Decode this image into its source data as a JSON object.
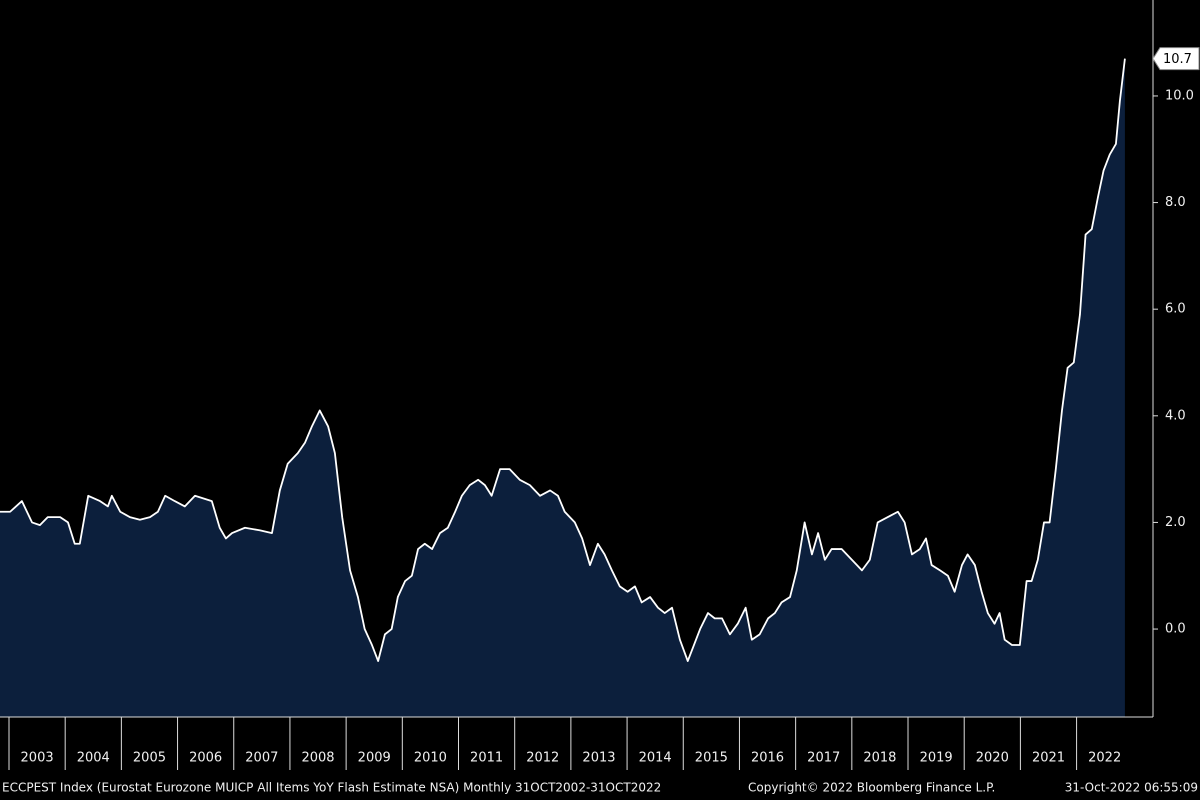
{
  "chart_data": {
    "type": "area",
    "source_note": "ECCPEST Index (Eurostat Eurozone MUICP All Items YoY Flash Estimate NSA)  Monthly 31OCT2002-31OCT2022",
    "copyright": "Copyright© 2022 Bloomberg Finance L.P.",
    "timestamp": "31-Oct-2022 06:55:09",
    "line_color": "#ffffff",
    "fill_color": "#0c1f3c",
    "xlim": [
      2002.84,
      2023.36
    ],
    "ylim": [
      -1.65,
      11.8
    ],
    "xticks": [
      2003,
      2004,
      2005,
      2006,
      2007,
      2008,
      2009,
      2010,
      2011,
      2012,
      2013,
      2014,
      2015,
      2016,
      2017,
      2018,
      2019,
      2020,
      2021,
      2022
    ],
    "yticks": [
      {
        "value": 0,
        "label": "0.0"
      },
      {
        "value": 2,
        "label": "2.0"
      },
      {
        "value": 4,
        "label": "4.0"
      },
      {
        "value": 6,
        "label": "6.0"
      },
      {
        "value": 8,
        "label": "8.0"
      },
      {
        "value": 10,
        "label": "10.0"
      }
    ],
    "x": [
      2002.84,
      2003.02,
      2003.23,
      2003.41,
      2003.55,
      2003.69,
      2003.91,
      2004.05,
      2004.17,
      2004.26,
      2004.41,
      2004.62,
      2004.76,
      2004.83,
      2004.98,
      2005.15,
      2005.33,
      2005.51,
      2005.65,
      2005.78,
      2005.95,
      2006.13,
      2006.31,
      2006.61,
      2006.75,
      2006.86,
      2006.97,
      2007.2,
      2007.47,
      2007.68,
      2007.82,
      2007.96,
      2008.14,
      2008.27,
      2008.39,
      2008.53,
      2008.68,
      2008.8,
      2008.93,
      2009.07,
      2009.21,
      2009.33,
      2009.46,
      2009.57,
      2009.69,
      2009.81,
      2009.92,
      2010.05,
      2010.17,
      2010.28,
      2010.4,
      2010.53,
      2010.67,
      2010.81,
      2010.94,
      2011.06,
      2011.2,
      2011.35,
      2011.47,
      2011.59,
      2011.74,
      2011.91,
      2012.09,
      2012.27,
      2012.45,
      2012.63,
      2012.77,
      2012.89,
      2013.07,
      2013.2,
      2013.34,
      2013.48,
      2013.6,
      2013.73,
      2013.87,
      2014.01,
      2014.14,
      2014.26,
      2014.41,
      2014.55,
      2014.67,
      2014.8,
      2014.94,
      2015.08,
      2015.19,
      2015.3,
      2015.44,
      2015.56,
      2015.69,
      2015.83,
      2015.97,
      2016.11,
      2016.22,
      2016.36,
      2016.51,
      2016.63,
      2016.75,
      2016.9,
      2017.02,
      2017.16,
      2017.29,
      2017.4,
      2017.52,
      2017.64,
      2017.82,
      2018.0,
      2018.18,
      2018.32,
      2018.46,
      2018.64,
      2018.82,
      2018.94,
      2019.07,
      2019.21,
      2019.32,
      2019.42,
      2019.57,
      2019.71,
      2019.83,
      2019.96,
      2020.06,
      2020.19,
      2020.31,
      2020.42,
      2020.54,
      2020.63,
      2020.72,
      2020.85,
      2020.99,
      2021.11,
      2021.2,
      2021.31,
      2021.42,
      2021.52,
      2021.63,
      2021.74,
      2021.84,
      2021.95,
      2022.06,
      2022.16,
      2022.27,
      2022.38,
      2022.48,
      2022.59,
      2022.7,
      2022.77,
      2022.86
    ],
    "values": [
      2.2,
      2.2,
      2.4,
      2.0,
      1.95,
      2.1,
      2.1,
      2.0,
      1.6,
      1.6,
      2.5,
      2.4,
      2.3,
      2.5,
      2.2,
      2.1,
      2.05,
      2.1,
      2.2,
      2.5,
      2.4,
      2.3,
      2.5,
      2.4,
      1.9,
      1.7,
      1.8,
      1.9,
      1.85,
      1.8,
      2.6,
      3.1,
      3.3,
      3.5,
      3.8,
      4.1,
      3.8,
      3.3,
      2.1,
      1.1,
      0.6,
      0.0,
      -0.3,
      -0.6,
      -0.1,
      0.0,
      0.6,
      0.9,
      1.0,
      1.5,
      1.6,
      1.5,
      1.8,
      1.9,
      2.2,
      2.5,
      2.7,
      2.8,
      2.7,
      2.5,
      3.0,
      3.0,
      2.8,
      2.7,
      2.5,
      2.6,
      2.5,
      2.2,
      2.0,
      1.7,
      1.2,
      1.6,
      1.4,
      1.1,
      0.8,
      0.7,
      0.8,
      0.5,
      0.6,
      0.4,
      0.3,
      0.4,
      -0.2,
      -0.6,
      -0.3,
      0.0,
      0.3,
      0.2,
      0.2,
      -0.1,
      0.1,
      0.4,
      -0.2,
      -0.1,
      0.2,
      0.3,
      0.5,
      0.6,
      1.1,
      2.0,
      1.4,
      1.8,
      1.3,
      1.5,
      1.5,
      1.3,
      1.1,
      1.3,
      2.0,
      2.1,
      2.2,
      2.0,
      1.4,
      1.5,
      1.7,
      1.2,
      1.1,
      1.0,
      0.7,
      1.2,
      1.4,
      1.2,
      0.7,
      0.3,
      0.1,
      0.3,
      -0.2,
      -0.3,
      -0.3,
      0.9,
      0.9,
      1.3,
      2.0,
      2.0,
      3.0,
      4.1,
      4.9,
      5.0,
      5.9,
      7.4,
      7.5,
      8.1,
      8.6,
      8.9,
      9.1,
      9.9,
      10.7
    ]
  }
}
